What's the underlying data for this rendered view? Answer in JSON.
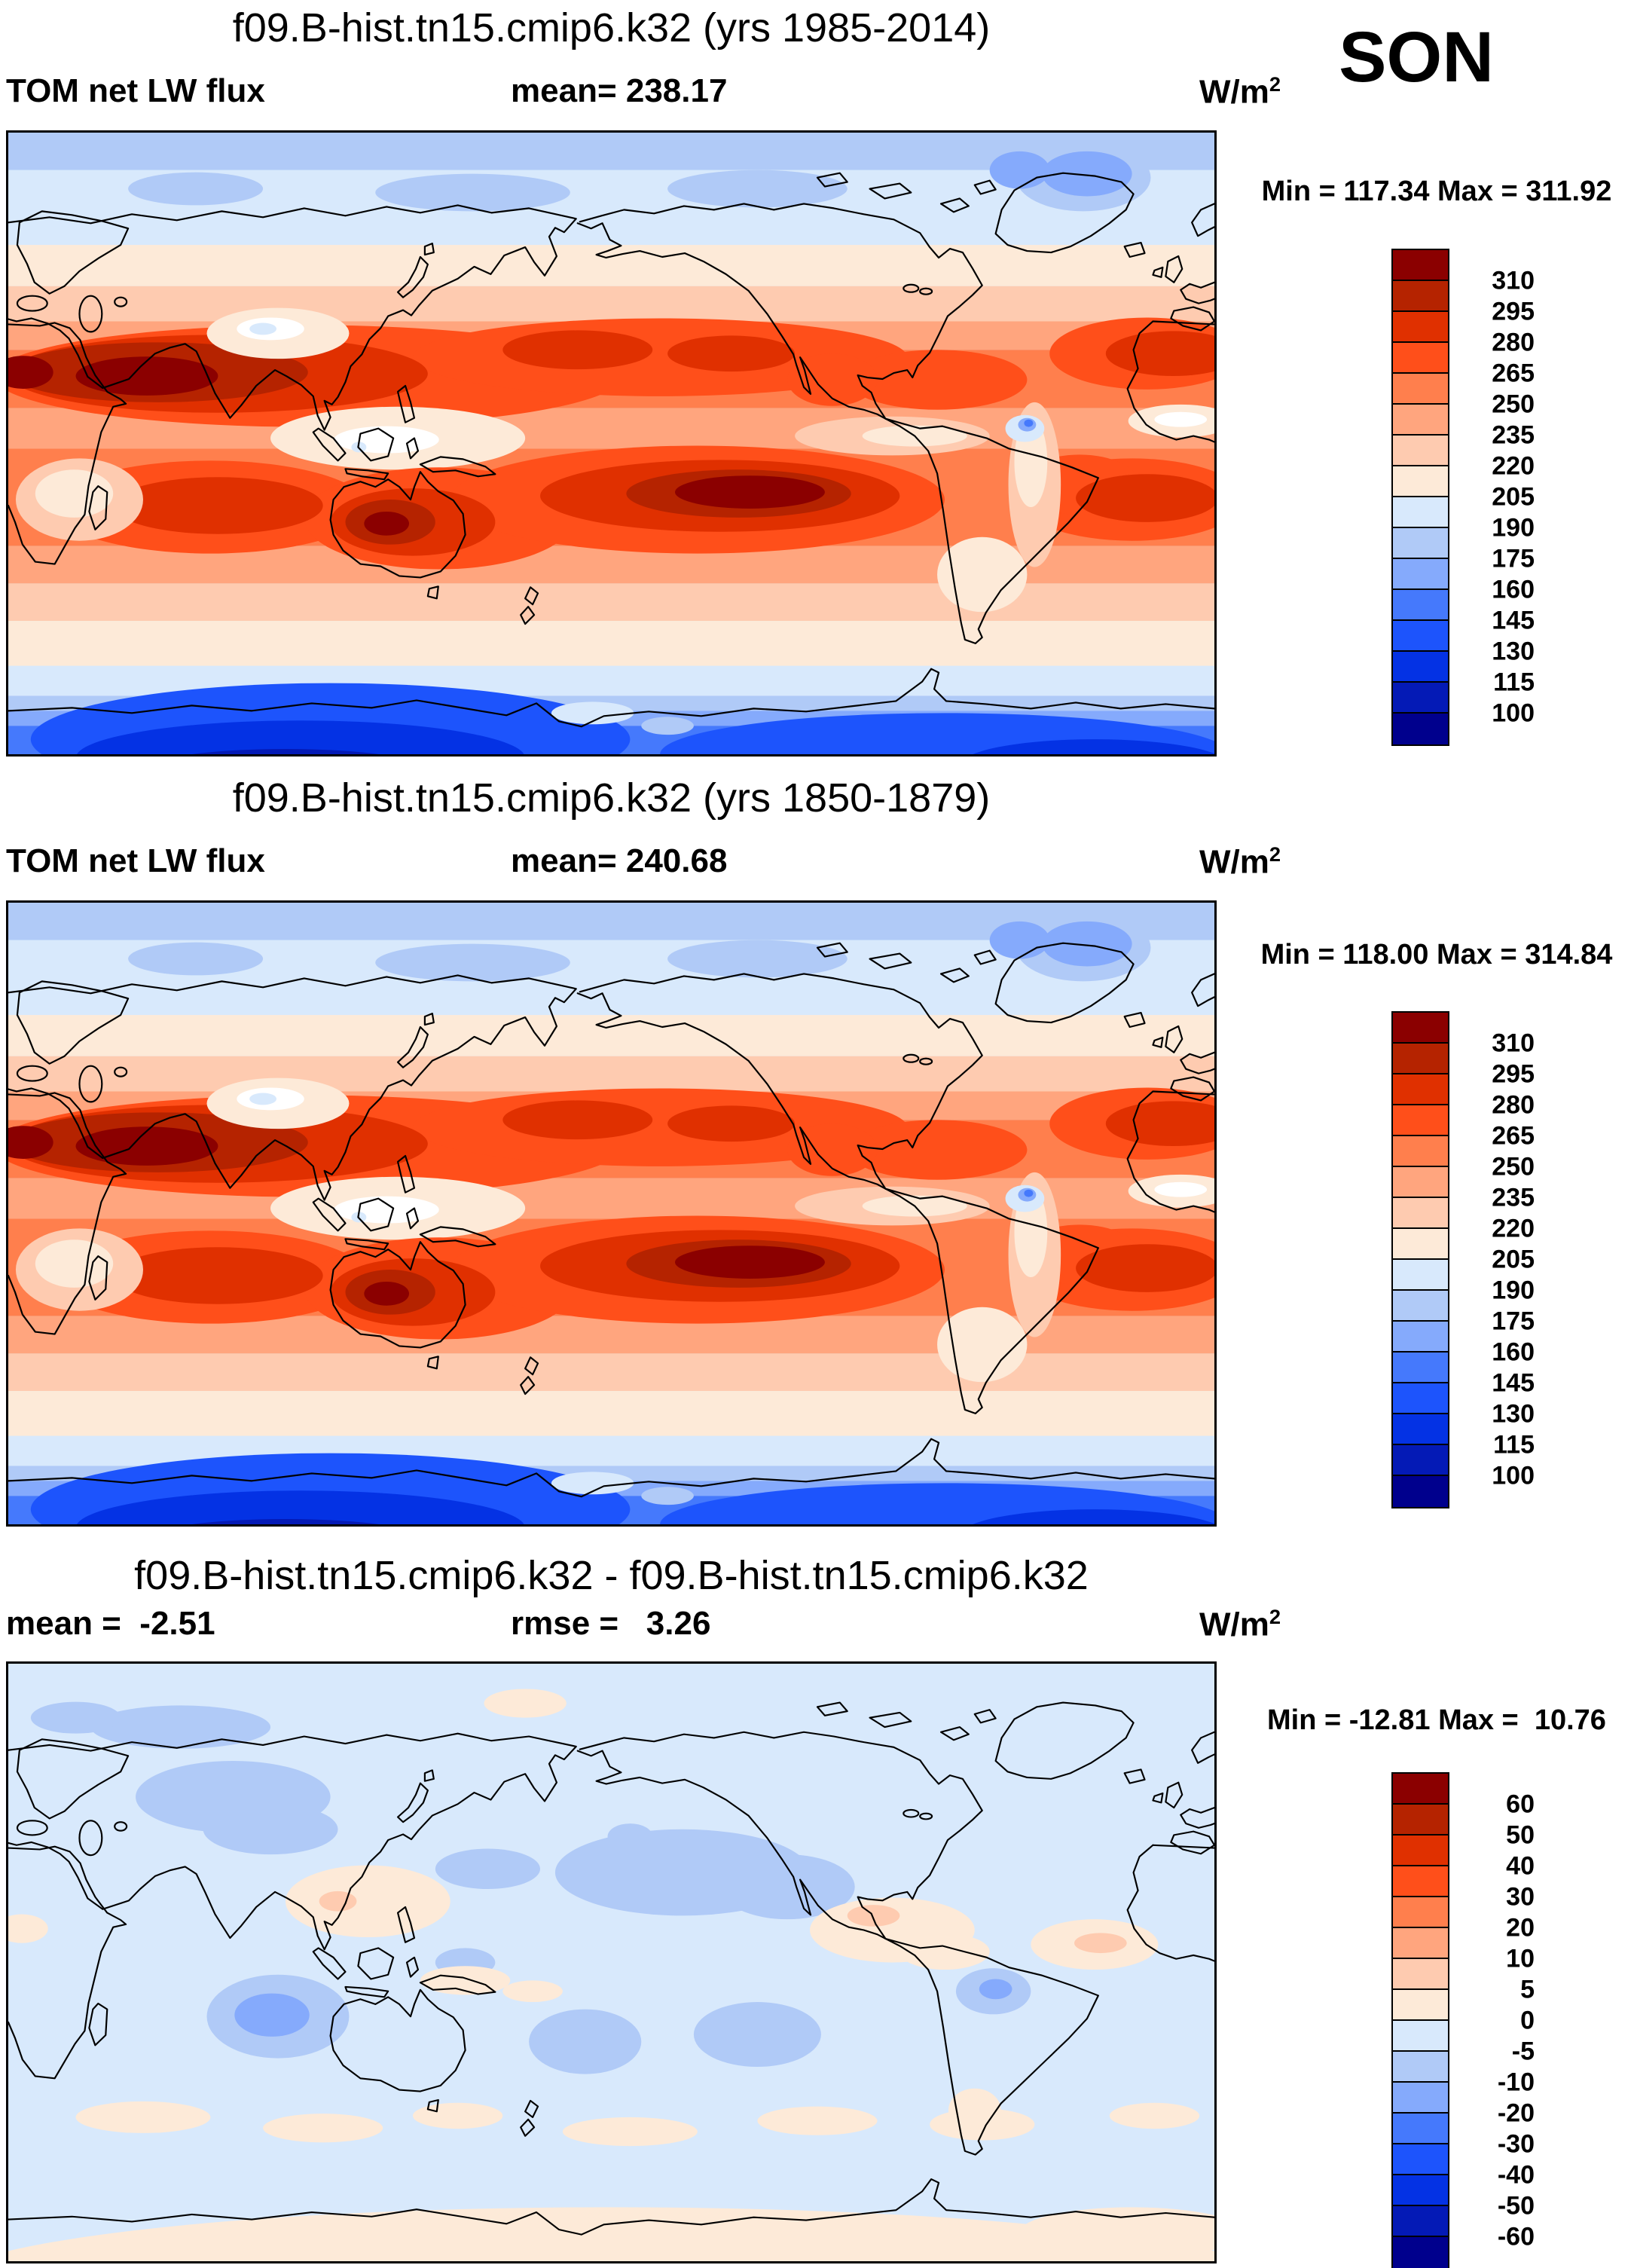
{
  "season_label": "SON",
  "units": {
    "base": "W/m",
    "sup": "2"
  },
  "palette_top_to_bottom": [
    "#8b0000",
    "#b52300",
    "#e03000",
    "#ff4f1a",
    "#ff7f4d",
    "#ffa57e",
    "#fecbb0",
    "#fdead8",
    "#d8e9fc",
    "#b0caf7",
    "#85aafc",
    "#4579fc",
    "#1d54fc",
    "#0432e4",
    "#041ab6",
    "#00008d"
  ],
  "panels": [
    {
      "title": "f09.B-hist.tn15.cmip6.k32 (yrs 1985-2014)",
      "var_label": "TOM net LW flux",
      "stat_label": "mean= 238.17",
      "minmax_label": "Min = 117.34 Max = 311.92",
      "colorbar": {
        "tick_labels": [
          "310",
          "295",
          "280",
          "265",
          "250",
          "235",
          "220",
          "205",
          "190",
          "175",
          "160",
          "145",
          "130",
          "115",
          "100"
        ],
        "colors": [
          "#8b0000",
          "#b52300",
          "#e03000",
          "#ff4f1a",
          "#ff7f4d",
          "#ffa57e",
          "#fecbb0",
          "#fdead8",
          "#d8e9fc",
          "#b0caf7",
          "#85aafc",
          "#4579fc",
          "#1d54fc",
          "#0432e4",
          "#041ab6",
          "#00008d"
        ]
      }
    },
    {
      "title": "f09.B-hist.tn15.cmip6.k32 (yrs 1850-1879)",
      "var_label": "TOM net LW flux",
      "stat_label": "mean= 240.68",
      "minmax_label": "Min = 118.00 Max = 314.84",
      "colorbar": {
        "tick_labels": [
          "310",
          "295",
          "280",
          "265",
          "250",
          "235",
          "220",
          "205",
          "190",
          "175",
          "160",
          "145",
          "130",
          "115",
          "100"
        ],
        "colors": [
          "#8b0000",
          "#b52300",
          "#e03000",
          "#ff4f1a",
          "#ff7f4d",
          "#ffa57e",
          "#fecbb0",
          "#fdead8",
          "#d8e9fc",
          "#b0caf7",
          "#85aafc",
          "#4579fc",
          "#1d54fc",
          "#0432e4",
          "#041ab6",
          "#00008d"
        ]
      }
    },
    {
      "title": "f09.B-hist.tn15.cmip6.k32 - f09.B-hist.tn15.cmip6.k32",
      "var_label": "mean =  -2.51",
      "stat_label": "rmse =   3.26",
      "minmax_label": "Min = -12.81 Max =  10.76",
      "colorbar": {
        "tick_labels": [
          "60",
          "50",
          "40",
          "30",
          "20",
          "10",
          "5",
          "0",
          "-5",
          "-10",
          "-20",
          "-30",
          "-40",
          "-50",
          "-60"
        ],
        "colors": [
          "#8b0000",
          "#b52300",
          "#e03000",
          "#ff4f1a",
          "#ff7f4d",
          "#ffa57e",
          "#fecbb0",
          "#fdead8",
          "#d8e9fc",
          "#b0caf7",
          "#85aafc",
          "#4579fc",
          "#1d54fc",
          "#0432e4",
          "#041ab6",
          "#00008d"
        ]
      }
    }
  ],
  "chart_data": [
    {
      "type": "heatmap",
      "title": "f09.B-hist.tn15.cmip6.k32 (yrs 1985-2014)",
      "variable": "TOM net LW flux",
      "season": "SON",
      "units": "W/m2",
      "mean": 238.17,
      "min": 117.34,
      "max": 311.92,
      "projection": "global latitude-longitude world map, Pacific-centered",
      "contour_levels": [
        100,
        115,
        130,
        145,
        160,
        175,
        190,
        205,
        220,
        235,
        250,
        265,
        280,
        295,
        310
      ],
      "palette_low_to_high": [
        "#00008d",
        "#041ab6",
        "#0432e4",
        "#1d54fc",
        "#4579fc",
        "#85aafc",
        "#b0caf7",
        "#d8e9fc",
        "#fdead8",
        "#fecbb0",
        "#ffa57e",
        "#ff7f4d",
        "#ff4f1a",
        "#e03000",
        "#b52300",
        "#8b0000"
      ],
      "pattern_summary": "Values 265-310 in subtropical bands (N Africa-Arabia-India, subtropical Pacific/Atlantic, S-central Pacific, Australia); 205-235 near equator over Indonesia; 100-160 over Antarctica; 175-205 over Arctic."
    },
    {
      "type": "heatmap",
      "title": "f09.B-hist.tn15.cmip6.k32 (yrs 1850-1879)",
      "variable": "TOM net LW flux",
      "season": "SON",
      "units": "W/m2",
      "mean": 240.68,
      "min": 118.0,
      "max": 314.84,
      "projection": "global latitude-longitude world map, Pacific-centered",
      "contour_levels": [
        100,
        115,
        130,
        145,
        160,
        175,
        190,
        205,
        220,
        235,
        250,
        265,
        280,
        295,
        310
      ],
      "palette_low_to_high": [
        "#00008d",
        "#041ab6",
        "#0432e4",
        "#1d54fc",
        "#4579fc",
        "#85aafc",
        "#b0caf7",
        "#d8e9fc",
        "#fdead8",
        "#fecbb0",
        "#ffa57e",
        "#ff7f4d",
        "#ff4f1a",
        "#e03000",
        "#b52300",
        "#8b0000"
      ],
      "pattern_summary": "Nearly identical pattern to 1985-2014 panel with slightly stronger subtropical maxima."
    },
    {
      "type": "heatmap",
      "title": "f09.B-hist.tn15.cmip6.k32 - f09.B-hist.tn15.cmip6.k32",
      "variable": "TOM net LW flux difference",
      "season": "SON",
      "units": "W/m2",
      "mean": -2.51,
      "rmse": 3.26,
      "min": -12.81,
      "max": 10.76,
      "projection": "global latitude-longitude world map, Pacific-centered",
      "contour_levels": [
        -60,
        -50,
        -40,
        -30,
        -20,
        -10,
        -5,
        0,
        5,
        10,
        20,
        30,
        40,
        50,
        60
      ],
      "palette_low_to_high": [
        "#00008d",
        "#041ab6",
        "#0432e4",
        "#1d54fc",
        "#4579fc",
        "#85aafc",
        "#b0caf7",
        "#d8e9fc",
        "#fdead8",
        "#fecbb0",
        "#ffa57e",
        "#ff7f4d",
        "#ff4f1a",
        "#e03000",
        "#b52300",
        "#8b0000"
      ],
      "pattern_summary": "Mostly -5 to 0 (pale blue) everywhere; patches of -10 to -5 over Siberia, NE Pacific, SE Indian Ocean, Coral Sea, S Pacific, Amazon; patches of 0 to 5 over SE Asia, Central America, equatorial Atlantic, Southern Ocean and coastal Antarctica."
    }
  ]
}
